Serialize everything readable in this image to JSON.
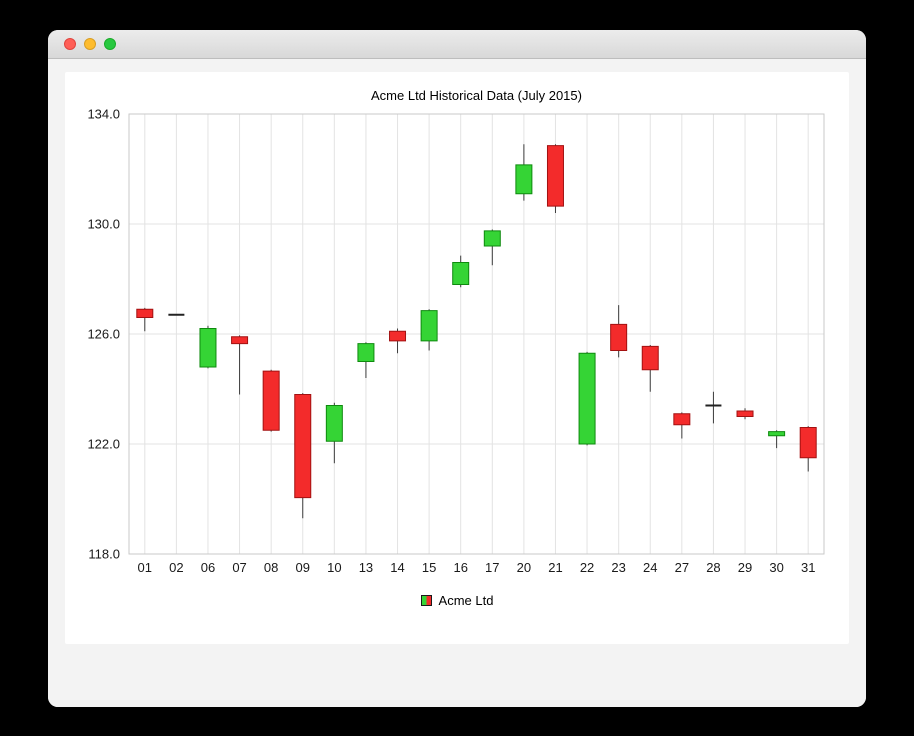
{
  "window": {
    "controls": [
      "close",
      "minimize",
      "zoom"
    ]
  },
  "chart_data": {
    "type": "candlestick",
    "title": "Acme Ltd Historical Data (July 2015)",
    "legend": "Acme Ltd",
    "legend_position": "bottom",
    "grid": true,
    "ylim": [
      118.0,
      134.0
    ],
    "y_ticks": [
      134.0,
      130.0,
      126.0,
      122.0,
      118.0
    ],
    "categories": [
      "01",
      "02",
      "06",
      "07",
      "08",
      "09",
      "10",
      "13",
      "14",
      "15",
      "16",
      "17",
      "20",
      "21",
      "22",
      "23",
      "24",
      "27",
      "28",
      "29",
      "30",
      "31"
    ],
    "series": [
      {
        "name": "Acme Ltd",
        "ohlc": [
          [
            126.9,
            126.95,
            126.1,
            126.6
          ],
          [
            126.7,
            126.7,
            126.7,
            126.7
          ],
          [
            124.8,
            126.3,
            124.75,
            126.2
          ],
          [
            125.9,
            125.95,
            123.8,
            125.65
          ],
          [
            124.65,
            124.7,
            122.45,
            122.5
          ],
          [
            123.8,
            123.85,
            119.3,
            120.05
          ],
          [
            122.1,
            123.5,
            121.3,
            123.4
          ],
          [
            125.0,
            125.7,
            124.4,
            125.65
          ],
          [
            126.1,
            126.2,
            125.3,
            125.75
          ],
          [
            125.75,
            126.9,
            125.4,
            126.85
          ],
          [
            127.8,
            128.85,
            127.7,
            128.6
          ],
          [
            129.2,
            129.8,
            128.5,
            129.75
          ],
          [
            131.1,
            132.9,
            130.85,
            132.15
          ],
          [
            132.85,
            132.9,
            130.4,
            130.65
          ],
          [
            122.0,
            125.35,
            121.95,
            125.3
          ],
          [
            126.35,
            127.05,
            125.15,
            125.4
          ],
          [
            125.55,
            125.6,
            123.9,
            124.7
          ],
          [
            123.1,
            123.15,
            122.2,
            122.7
          ],
          [
            123.4,
            123.9,
            122.75,
            123.4
          ],
          [
            123.2,
            123.3,
            122.9,
            123.0
          ],
          [
            122.3,
            122.5,
            121.85,
            122.45
          ],
          [
            122.6,
            122.65,
            121.0,
            121.5
          ]
        ]
      }
    ],
    "colors": {
      "up": "#35d435",
      "up_border": "#0e8a0e",
      "down": "#f32b2b",
      "down_border": "#a31111",
      "wick": "#3c3c3c",
      "doji": "#222222",
      "grid": "#e3e3e3",
      "axis": "#c9c9c9",
      "text": "#1a1a1a"
    }
  }
}
